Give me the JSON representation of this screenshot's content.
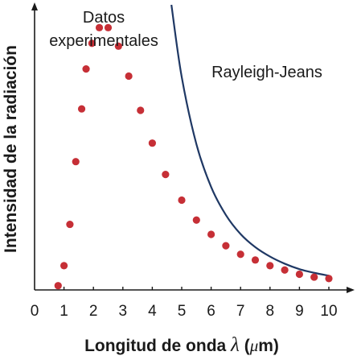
{
  "chart_data": {
    "type": "scatter",
    "xlabel": {
      "prefix": "Longitud de onda ",
      "symbol": "λ",
      "unit_open": " (",
      "unit_mu": "μ",
      "unit_rest": "m)"
    },
    "ylabel": "Intensidad de la radiación",
    "xlim": [
      0,
      10.5
    ],
    "ylim": [
      0,
      100
    ],
    "x_ticks": [
      "0",
      "1",
      "2",
      "3",
      "4",
      "5",
      "6",
      "7",
      "8",
      "9",
      "10"
    ],
    "grid": false,
    "series": [
      {
        "name_lines": [
          "Datos",
          "experimentales"
        ],
        "kind": "points",
        "color": "#c62f36",
        "points": [
          [
            0.8,
            1.5
          ],
          [
            1.0,
            8.5
          ],
          [
            1.2,
            23
          ],
          [
            1.4,
            45
          ],
          [
            1.6,
            63.5
          ],
          [
            1.75,
            77.5
          ],
          [
            1.95,
            86.5
          ],
          [
            2.2,
            92
          ],
          [
            2.5,
            92
          ],
          [
            2.85,
            85.5
          ],
          [
            3.2,
            75
          ],
          [
            3.6,
            63
          ],
          [
            4.0,
            51.5
          ],
          [
            4.45,
            40.5
          ],
          [
            5.0,
            31.5
          ],
          [
            5.5,
            24.5
          ],
          [
            6.0,
            19.5
          ],
          [
            6.5,
            15.5
          ],
          [
            7.0,
            12.5
          ],
          [
            7.5,
            10.5
          ],
          [
            8.0,
            8.5
          ],
          [
            8.5,
            7
          ],
          [
            9.0,
            5.5
          ],
          [
            9.5,
            4.5
          ],
          [
            10.0,
            4
          ]
        ]
      },
      {
        "name": "Rayleigh-Jeans",
        "kind": "curve",
        "color": "#1f3864",
        "points": [
          [
            4.65,
            100
          ],
          [
            5.0,
            74.7
          ],
          [
            5.5,
            51.1
          ],
          [
            6.0,
            36.1
          ],
          [
            6.5,
            26.3
          ],
          [
            7.0,
            19.6
          ],
          [
            7.5,
            15.0
          ],
          [
            8.0,
            11.7
          ],
          [
            8.5,
            9.2
          ],
          [
            9.0,
            7.3
          ],
          [
            9.5,
            6.0
          ],
          [
            10.0,
            5.0
          ]
        ]
      }
    ]
  }
}
